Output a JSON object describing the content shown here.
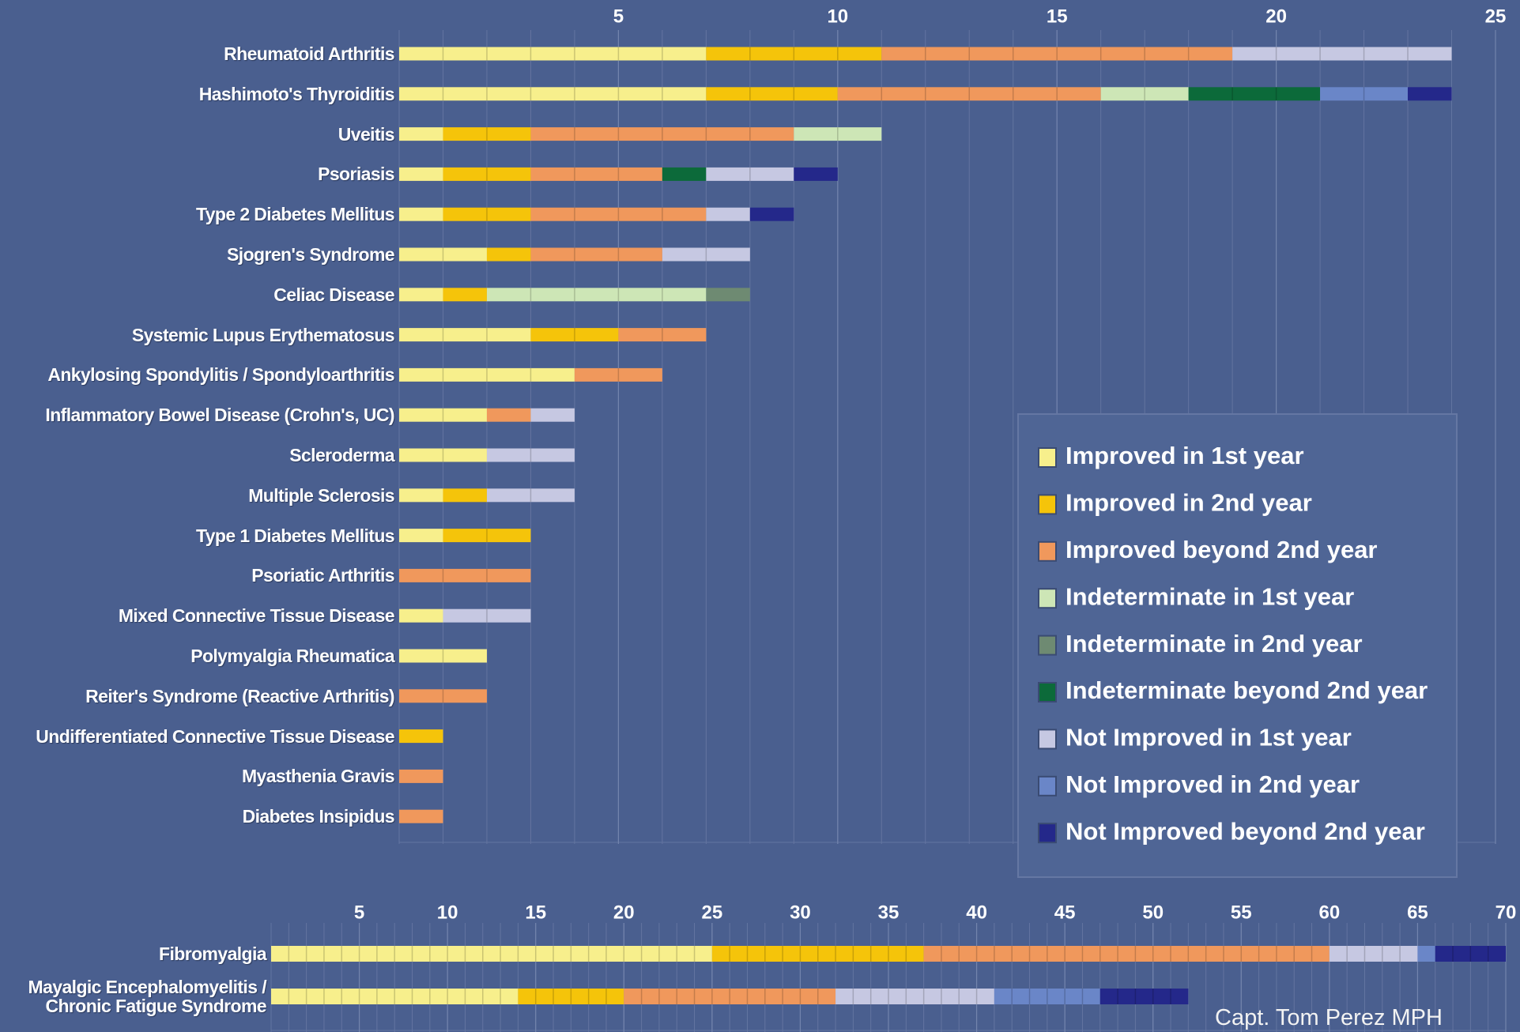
{
  "chart_data": [
    {
      "type": "stacked-bar-horizontal",
      "categories": [
        "Rheumatoid Arthritis",
        "Hashimoto's Thyroiditis",
        "Uveitis",
        "Psoriasis",
        "Type 2 Diabetes Mellitus",
        "Sjogren's Syndrome",
        "Celiac Disease",
        "Systemic Lupus Erythematosus",
        "Ankylosing Spondylitis / Spondyloarthritis",
        "Inflammatory Bowel Disease (Crohn's, UC)",
        "Scleroderma",
        "Multiple Sclerosis",
        "Type 1 Diabetes Mellitus",
        "Psoriatic Arthritis",
        "Mixed Connective Tissue Disease",
        "Polymyalgia Rheumatica",
        "Reiter's Syndrome (Reactive Arthritis)",
        "Undifferentiated Connective Tissue Disease",
        "Myasthenia Gravis",
        "Diabetes Insipidus"
      ],
      "series": [
        {
          "name": "Improved in 1st year",
          "color": "#f7ef8c",
          "values": [
            7,
            7,
            1,
            1,
            1,
            2,
            1,
            3,
            4,
            2,
            2,
            1,
            1,
            0,
            1,
            2,
            0,
            0,
            0,
            0
          ]
        },
        {
          "name": "Improved in 2nd year",
          "color": "#f5c40a",
          "values": [
            4,
            3,
            2,
            2,
            2,
            1,
            1,
            2,
            0,
            0,
            0,
            1,
            2,
            0,
            0,
            0,
            0,
            1,
            0,
            0
          ]
        },
        {
          "name": "Improved beyond 2nd year",
          "color": "#f0985c",
          "values": [
            8,
            6,
            6,
            3,
            4,
            3,
            0,
            2,
            2,
            1,
            0,
            0,
            0,
            3,
            0,
            0,
            2,
            0,
            1,
            1
          ]
        },
        {
          "name": "Indeterminate in 1st year",
          "color": "#cde6b6",
          "values": [
            0,
            2,
            2,
            0,
            0,
            0,
            5,
            0,
            0,
            0,
            0,
            0,
            0,
            0,
            0,
            0,
            0,
            0,
            0,
            0
          ]
        },
        {
          "name": "Indeterminate in 2nd year",
          "color": "#6e8a72",
          "values": [
            0,
            0,
            0,
            0,
            0,
            0,
            1,
            0,
            0,
            0,
            0,
            0,
            0,
            0,
            0,
            0,
            0,
            0,
            0,
            0
          ]
        },
        {
          "name": "Indeterminate beyond 2nd year",
          "color": "#0c6a3a",
          "values": [
            0,
            3,
            0,
            1,
            0,
            0,
            0,
            0,
            0,
            0,
            0,
            0,
            0,
            0,
            0,
            0,
            0,
            0,
            0,
            0
          ]
        },
        {
          "name": "Not Improved in 1st year",
          "color": "#c6c8e2",
          "values": [
            5,
            0,
            0,
            2,
            1,
            2,
            0,
            0,
            0,
            1,
            2,
            2,
            0,
            0,
            2,
            0,
            0,
            0,
            0,
            0
          ]
        },
        {
          "name": "Not Improved in 2nd year",
          "color": "#6a86c8",
          "values": [
            0,
            2,
            0,
            0,
            0,
            0,
            0,
            0,
            0,
            0,
            0,
            0,
            0,
            0,
            0,
            0,
            0,
            0,
            0,
            0
          ]
        },
        {
          "name": "Not Improved beyond 2nd year",
          "color": "#24288a",
          "values": [
            0,
            1,
            0,
            1,
            1,
            0,
            0,
            0,
            0,
            0,
            0,
            0,
            0,
            0,
            0,
            0,
            0,
            0,
            0,
            0
          ]
        }
      ],
      "xlim": [
        0,
        25
      ],
      "xticks": [
        5,
        10,
        15,
        20,
        25
      ],
      "legend": "lower right"
    },
    {
      "type": "stacked-bar-horizontal",
      "categories": [
        "Fibromyalgia",
        "Mayalgic Encephalomyelitis / Chronic Fatigue Syndrome"
      ],
      "series": [
        {
          "color": "#f7ef8c",
          "values": [
            25,
            14
          ]
        },
        {
          "color": "#f5c40a",
          "values": [
            12,
            6
          ]
        },
        {
          "color": "#f0985c",
          "values": [
            23,
            12
          ]
        },
        {
          "color": "#c6c8e2",
          "values": [
            5,
            9
          ]
        },
        {
          "color": "#6a86c8",
          "values": [
            1,
            6
          ]
        },
        {
          "color": "#24288a",
          "values": [
            4,
            5
          ]
        }
      ],
      "xlim": [
        0,
        70
      ],
      "xticks": [
        5,
        10,
        15,
        20,
        25,
        30,
        35,
        40,
        45,
        50,
        55,
        60,
        65,
        70
      ]
    }
  ],
  "credit": "Capt. Tom Perez MPH"
}
